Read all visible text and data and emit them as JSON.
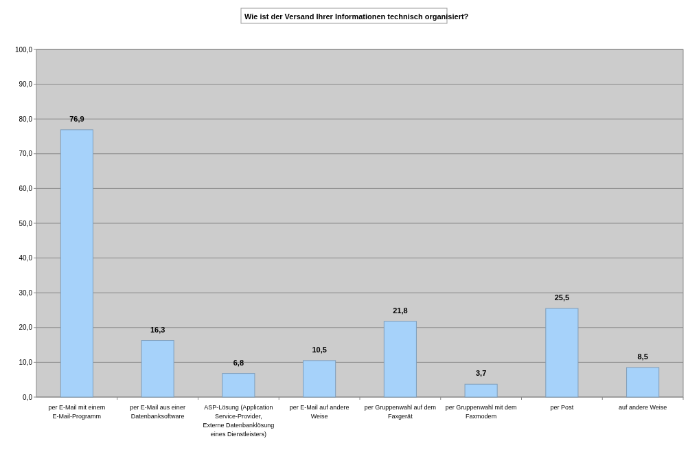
{
  "chart_data": {
    "type": "bar",
    "title": "Wie ist der Versand Ihrer Informationen technisch organisiert?",
    "categories": [
      "per E-Mail mit einem E-Mail-Programm",
      "per E-Mail aus einer Datenbanksoftware",
      "ASP-Lösung (Application Service-Provider, Externe Datenbanklösung eines Dienstleisters)",
      "per E-Mail auf andere Weise",
      "per Gruppenwahl auf dem Faxgerät",
      "per Gruppenwahl mit dem Faxmodem",
      "per Post",
      "auf andere Weise"
    ],
    "values": [
      76.9,
      16.3,
      6.8,
      10.5,
      21.8,
      3.7,
      25.5,
      8.5
    ],
    "value_labels": [
      "76,9",
      "16,3",
      "6,8",
      "10,5",
      "21,8",
      "3,7",
      "25,5",
      "8,5"
    ],
    "color": "#a6d2fa",
    "ylim": [
      0,
      100
    ],
    "yticks": [
      {
        "value": 0,
        "label": "0,0"
      },
      {
        "value": 10,
        "label": "10,0"
      },
      {
        "value": 20,
        "label": "20,0"
      },
      {
        "value": 30,
        "label": "30,0"
      },
      {
        "value": 40,
        "label": "40,0"
      },
      {
        "value": 50,
        "label": "50,0"
      },
      {
        "value": 60,
        "label": "60,0"
      },
      {
        "value": 70,
        "label": "70,0"
      },
      {
        "value": 80,
        "label": "80,0"
      },
      {
        "value": 90,
        "label": "90,0"
      },
      {
        "value": 100,
        "label": "100,0"
      }
    ],
    "grid": "y"
  }
}
